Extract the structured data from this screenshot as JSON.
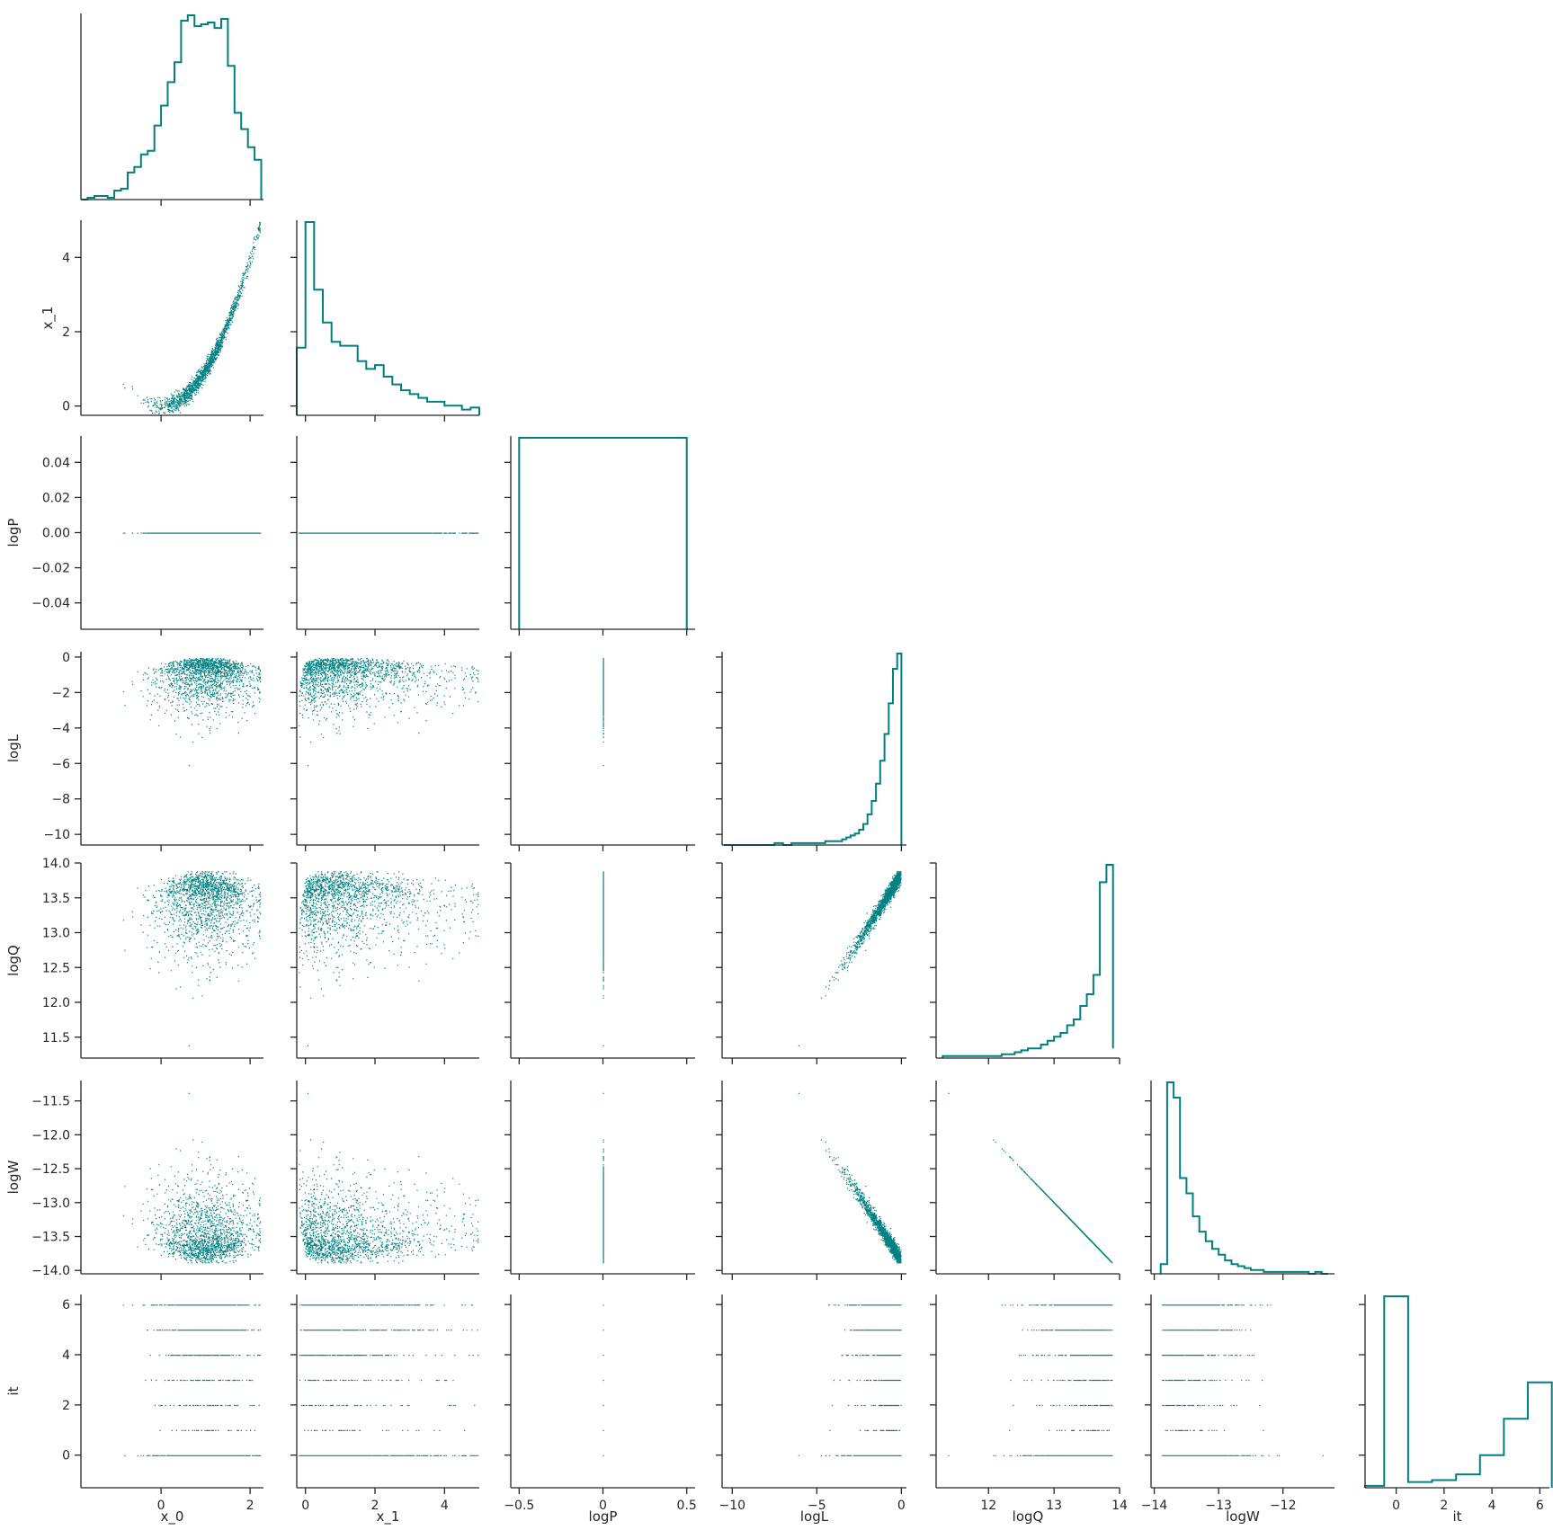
{
  "chart_data": {
    "type": "pairplot",
    "variables": [
      "x_0",
      "x_1",
      "logP",
      "logL",
      "logQ",
      "logW",
      "it"
    ],
    "color": "#008080",
    "axes": {
      "x_0": {
        "lim": [
          -1.8,
          2.3
        ],
        "ticks": [
          0,
          2
        ],
        "tick_labels": [
          "0",
          "2"
        ]
      },
      "x_1": {
        "lim": [
          -0.25,
          5.0
        ],
        "ticks": [
          0,
          2,
          4
        ],
        "tick_labels": [
          "0",
          "2",
          "4"
        ]
      },
      "logP": {
        "lim": [
          -0.055,
          0.055
        ],
        "ticks": [
          -0.04,
          -0.02,
          0.0,
          0.02,
          0.04
        ],
        "tick_labels": [
          "−0.04",
          "−0.02",
          "0.00",
          "0.02",
          "0.04"
        ],
        "x_lim": [
          -0.55,
          0.55
        ],
        "x_ticks": [
          -0.5,
          0,
          0.5
        ],
        "x_tick_labels": [
          "−0.5",
          "0",
          "0.5"
        ]
      },
      "logL": {
        "lim": [
          -10.6,
          0.3
        ],
        "ticks": [
          -10,
          -8,
          -6,
          -4,
          -2,
          0
        ],
        "tick_labels": [
          "−10",
          "−8",
          "−6",
          "−4",
          "−2",
          "0"
        ],
        "x_ticks": [
          -10,
          -5,
          0
        ],
        "x_tick_labels": [
          "−10",
          "−5",
          "0"
        ]
      },
      "logQ": {
        "lim": [
          11.2,
          14.0
        ],
        "ticks": [
          11.5,
          12.0,
          12.5,
          13.0,
          13.5,
          14.0
        ],
        "tick_labels": [
          "11.5",
          "12.0",
          "12.5",
          "13.0",
          "13.5",
          "14.0"
        ],
        "x_ticks": [
          12,
          13,
          14
        ],
        "x_tick_labels": [
          "12",
          "13",
          "14"
        ]
      },
      "logW": {
        "lim": [
          -14.05,
          -11.2
        ],
        "ticks": [
          -14.0,
          -13.5,
          -13.0,
          -12.5,
          -12.0,
          -11.5
        ],
        "tick_labels": [
          "−14.0",
          "−13.5",
          "−13.0",
          "−12.5",
          "−12.0",
          "−11.5"
        ],
        "x_ticks": [
          -14,
          -13,
          -12
        ],
        "x_tick_labels": [
          "−14",
          "−13",
          "−12"
        ]
      },
      "it": {
        "lim": [
          -1.3,
          6.4
        ],
        "ticks": [
          0,
          2,
          4,
          6
        ],
        "tick_labels": [
          "0",
          "2",
          "4",
          "6"
        ]
      }
    },
    "histograms": {
      "x_0": {
        "edges": [
          -1.8,
          -1.65,
          -1.5,
          -1.35,
          -1.2,
          -1.05,
          -0.9,
          -0.75,
          -0.6,
          -0.45,
          -0.3,
          -0.15,
          0,
          0.15,
          0.3,
          0.45,
          0.6,
          0.75,
          0.9,
          1.05,
          1.2,
          1.35,
          1.5,
          1.65,
          1.8,
          1.95,
          2.1,
          2.25
        ],
        "counts": [
          0,
          1,
          2,
          2,
          1,
          5,
          6,
          15,
          18,
          25,
          27,
          41,
          52,
          65,
          76,
          99,
          102,
          96,
          97,
          98,
          95,
          100,
          74,
          48,
          39,
          29,
          22
        ]
      },
      "x_1": {
        "edges": [
          -0.25,
          0,
          0.25,
          0.5,
          0.75,
          1.0,
          1.25,
          1.5,
          1.75,
          2.0,
          2.25,
          2.5,
          2.75,
          3.0,
          3.25,
          3.5,
          3.75,
          4.0,
          4.25,
          4.5,
          4.75,
          5.0
        ],
        "counts": [
          35,
          100,
          65,
          48,
          38,
          36,
          36,
          28,
          24,
          26,
          20,
          16,
          13,
          11,
          9,
          7,
          7,
          5,
          5,
          3,
          4
        ]
      },
      "logP": {
        "edges": [
          -0.5,
          0.5
        ],
        "counts": [
          100
        ]
      },
      "logL": {
        "edges": [
          -10.5,
          -10.0,
          -9.5,
          -9.0,
          -8.5,
          -8.0,
          -7.5,
          -7.0,
          -6.5,
          -6.0,
          -5.5,
          -5.0,
          -4.5,
          -4.0,
          -3.5,
          -3.25,
          -3.0,
          -2.75,
          -2.5,
          -2.25,
          -2.0,
          -1.75,
          -1.5,
          -1.25,
          -1.0,
          -0.75,
          -0.5,
          -0.25,
          0
        ],
        "counts": [
          0,
          0,
          0,
          0,
          0,
          0,
          1,
          0,
          1,
          1,
          1,
          1,
          2,
          2,
          3,
          4,
          5,
          6,
          8,
          11,
          16,
          23,
          32,
          44,
          58,
          74,
          92,
          100
        ]
      },
      "logQ": {
        "edges": [
          11.3,
          11.4,
          11.5,
          11.6,
          11.7,
          11.8,
          11.9,
          12.0,
          12.1,
          12.2,
          12.3,
          12.4,
          12.5,
          12.6,
          12.7,
          12.8,
          12.9,
          13.0,
          13.1,
          13.2,
          13.3,
          13.4,
          13.5,
          13.6,
          13.7,
          13.8,
          13.9
        ],
        "counts": [
          1,
          1,
          1,
          1,
          1,
          1,
          1,
          1,
          1,
          2,
          2,
          3,
          4,
          5,
          5,
          7,
          9,
          11,
          13,
          17,
          20,
          27,
          33,
          43,
          91,
          100,
          5
        ]
      },
      "logW": {
        "edges": [
          -13.9,
          -13.8,
          -13.7,
          -13.6,
          -13.5,
          -13.4,
          -13.3,
          -13.2,
          -13.1,
          -13.0,
          -12.9,
          -12.8,
          -12.7,
          -12.6,
          -12.5,
          -12.4,
          -12.3,
          -12.2,
          -12.1,
          -12.0,
          -11.9,
          -11.8,
          -11.7,
          -11.6,
          -11.5,
          -11.4,
          -11.3
        ],
        "counts": [
          5,
          100,
          92,
          50,
          42,
          30,
          22,
          17,
          13,
          10,
          7,
          5,
          4,
          3,
          2,
          2,
          1,
          1,
          1,
          1,
          1,
          1,
          1,
          0,
          1,
          0
        ]
      },
      "it": {
        "edges": [
          -1.3,
          -0.5,
          0.5,
          1.5,
          2.5,
          3.5,
          4.5,
          5.5,
          6.5
        ],
        "counts": [
          1,
          100,
          3,
          4,
          7,
          17,
          36,
          55
        ]
      }
    }
  }
}
